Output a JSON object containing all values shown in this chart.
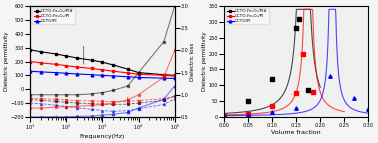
{
  "left": {
    "freq": [
      10,
      20,
      50,
      100,
      200,
      500,
      1000,
      2000,
      5000,
      10000,
      50000,
      100000
    ],
    "perm_black": [
      285,
      270,
      255,
      240,
      225,
      210,
      195,
      175,
      145,
      120,
      105,
      100
    ],
    "perm_red": [
      200,
      190,
      180,
      170,
      160,
      150,
      140,
      130,
      118,
      108,
      100,
      95
    ],
    "perm_blue": [
      130,
      125,
      120,
      115,
      110,
      105,
      100,
      96,
      90,
      85,
      80,
      78
    ],
    "loss_black": [
      -75,
      -80,
      -88,
      -95,
      -100,
      -105,
      -108,
      -110,
      -108,
      -100,
      -80,
      -50
    ],
    "loss_red": [
      -65,
      -68,
      -73,
      -78,
      -82,
      -85,
      -88,
      -90,
      -88,
      -82,
      -68,
      -50
    ],
    "loss_blue": [
      -100,
      -105,
      -115,
      -125,
      -135,
      -145,
      -155,
      -160,
      -155,
      -140,
      -110,
      -70
    ],
    "loss_right_black": [
      1.0,
      1.0,
      1.0,
      1.0,
      1.0,
      1.02,
      1.05,
      1.1,
      1.2,
      1.5,
      2.2,
      3.0
    ],
    "loss_right_red": [
      0.7,
      0.7,
      0.72,
      0.73,
      0.74,
      0.76,
      0.78,
      0.82,
      0.88,
      1.0,
      1.4,
      2.0
    ],
    "loss_right_blue": [
      0.5,
      0.5,
      0.5,
      0.5,
      0.51,
      0.52,
      0.54,
      0.56,
      0.6,
      0.7,
      0.9,
      1.2
    ],
    "xlabel": "Frequency(Hz)",
    "ylabel_left": "Dielectric permittivity",
    "ylabel_right": "Dielectric loss",
    "ylim_left": [
      -200,
      600
    ],
    "ylim_right": [
      0.5,
      3.0
    ],
    "legend": [
      "CCTO-Fe₃O₄/PI#",
      "CCTO-Fe₃O₄/PI",
      "CCTO/PI"
    ],
    "colors": [
      "black",
      "red",
      "blue"
    ]
  },
  "right": {
    "vf": [
      0.0,
      0.05,
      0.1,
      0.15,
      0.17,
      0.19,
      0.2
    ],
    "perm_black_pts": [
      2,
      50,
      120,
      280,
      310,
      90,
      85
    ],
    "perm_black_vf": [
      0.0,
      0.05,
      0.1,
      0.15,
      0.17,
      0.19,
      0.2
    ],
    "perm_red_pts": [
      2,
      10,
      35,
      75,
      200,
      185,
      80
    ],
    "perm_red_vf": [
      0.0,
      0.05,
      0.1,
      0.15,
      0.165,
      0.185,
      0.2
    ],
    "perm_blue_pts": [
      2,
      5,
      15,
      28,
      130,
      60,
      25
    ],
    "perm_blue_vf": [
      0.0,
      0.05,
      0.1,
      0.15,
      0.22,
      0.27,
      0.3
    ],
    "xlabel": "Volume fraction",
    "ylabel": "Dielectric permittivity",
    "ylim": [
      0,
      350
    ],
    "xlim": [
      0.0,
      0.3
    ],
    "legend": [
      "CCTO-Fe₃O₄/PI#",
      "CCTO-Fe₃O₄/PI",
      "CCTO/PI"
    ],
    "colors": [
      "black",
      "red",
      "blue"
    ]
  },
  "background": "#f0f0f0"
}
